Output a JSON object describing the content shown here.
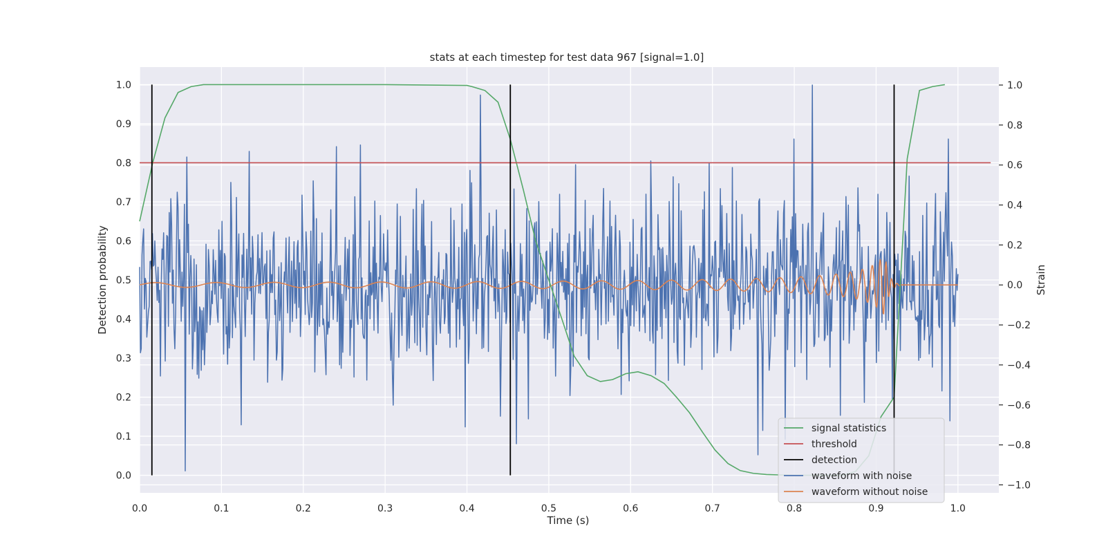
{
  "chart_data": {
    "type": "line",
    "title": "stats at each timestep for test data 967 [signal=1.0]",
    "xlabel": "Time (s)",
    "ylabel": "Detection probability",
    "ylabel_right": "Strain",
    "xlim": [
      0.0,
      1.05
    ],
    "ylim": [
      -0.045,
      1.045
    ],
    "ylim_right": [
      -1.04,
      1.09
    ],
    "xticks": [
      "0.0",
      "0.1",
      "0.2",
      "0.3",
      "0.4",
      "0.5",
      "0.6",
      "0.7",
      "0.8",
      "0.9",
      "1.0"
    ],
    "yticks": [
      "0.0",
      "0.1",
      "0.2",
      "0.3",
      "0.4",
      "0.5",
      "0.6",
      "0.7",
      "0.8",
      "0.9",
      "1.0"
    ],
    "yticks_right": [
      "−1.0",
      "−0.8",
      "−0.6",
      "−0.4",
      "−0.2",
      "0.0",
      "0.2",
      "0.4",
      "0.6",
      "0.8",
      "1.0"
    ],
    "grid": true,
    "legend_position": "bottom-right",
    "colors": {
      "background": "#eaeaf2",
      "grid": "#ffffff",
      "signal_statistics": "#55a868",
      "threshold": "#c44e52",
      "detection": "#000000",
      "waveform_with_noise": "#4c72b0",
      "waveform_without_noise": "#dd8452"
    },
    "legend": [
      {
        "key": "signal_statistics",
        "label": "signal statistics"
      },
      {
        "key": "threshold",
        "label": "threshold"
      },
      {
        "key": "detection",
        "label": "detection"
      },
      {
        "key": "waveform_with_noise",
        "label": "waveform with noise"
      },
      {
        "key": "waveform_without_noise",
        "label": "waveform without noise"
      }
    ],
    "series": [
      {
        "name": "signal statistics",
        "axis": "left",
        "x": [
          0.0,
          0.016,
          0.031,
          0.047,
          0.063,
          0.078,
          0.1,
          0.2,
          0.3,
          0.4,
          0.406,
          0.422,
          0.438,
          0.453,
          0.469,
          0.484,
          0.5,
          0.516,
          0.531,
          0.547,
          0.563,
          0.578,
          0.594,
          0.609,
          0.625,
          0.641,
          0.656,
          0.672,
          0.688,
          0.703,
          0.719,
          0.734,
          0.75,
          0.766,
          0.781,
          0.8,
          0.82,
          0.84,
          0.86,
          0.875,
          0.891,
          0.906,
          0.922,
          0.938,
          0.953,
          0.969,
          0.984
        ],
        "values": [
          0.65,
          0.8,
          0.915,
          0.98,
          0.995,
          1.0,
          1.0,
          1.0,
          1.0,
          0.998,
          0.995,
          0.985,
          0.955,
          0.86,
          0.73,
          0.6,
          0.5,
          0.4,
          0.305,
          0.255,
          0.24,
          0.245,
          0.26,
          0.265,
          0.255,
          0.235,
          0.2,
          0.16,
          0.11,
          0.065,
          0.03,
          0.012,
          0.005,
          0.002,
          0.001,
          0.0,
          0.0,
          0.0,
          0.0,
          0.01,
          0.05,
          0.15,
          0.2,
          0.81,
          0.985,
          0.995,
          1.0
        ]
      },
      {
        "name": "threshold",
        "axis": "left",
        "x": [
          0.0,
          1.04
        ],
        "values": [
          0.8,
          0.8
        ]
      },
      {
        "name": "detection",
        "axis": "left",
        "x": [
          0.015,
          0.453,
          0.922
        ],
        "values": [
          1.0,
          1.0,
          1.0
        ]
      },
      {
        "name": "waveform with noise",
        "axis": "right",
        "noise": true,
        "x_range": [
          0.0,
          1.0
        ],
        "points": 1024,
        "std": 0.22,
        "peak_points": [
          [
            0.056,
            -0.93
          ],
          [
            0.058,
            0.64
          ],
          [
            0.124,
            -0.7
          ],
          [
            0.27,
            0.7
          ],
          [
            0.416,
            0.95
          ],
          [
            0.625,
            0.62
          ],
          [
            0.756,
            -0.85
          ],
          [
            0.8,
            0.73
          ],
          [
            0.822,
            1.0
          ],
          [
            0.988,
            0.73
          ]
        ]
      },
      {
        "name": "waveform without noise",
        "axis": "right",
        "chirp": true,
        "x_range": [
          0.0,
          1.0
        ],
        "merger_time": 0.91,
        "peak_amplitude": 0.18
      }
    ]
  }
}
